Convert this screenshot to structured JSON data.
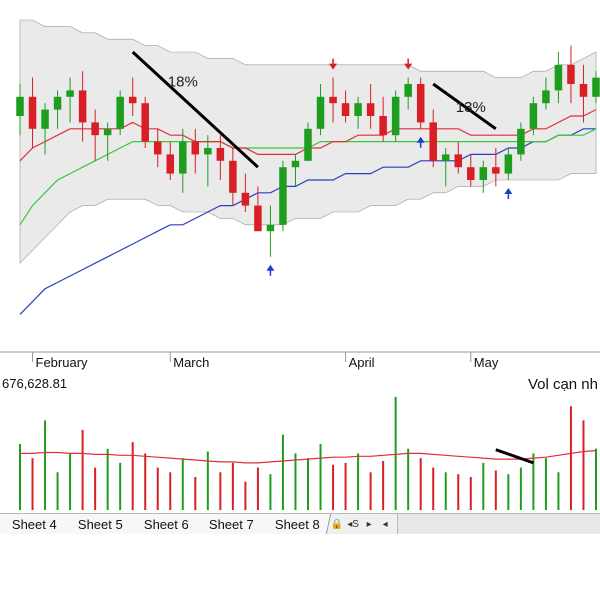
{
  "chart_data": {
    "type": "candlestick",
    "x_labels": [
      "February",
      "March",
      "April",
      "May"
    ],
    "price": {
      "ohlc": [
        [
          135,
          140,
          132,
          138
        ],
        [
          138,
          141,
          130,
          133
        ],
        [
          133,
          137,
          129,
          136
        ],
        [
          136,
          139,
          133,
          138
        ],
        [
          138,
          141,
          134,
          139
        ],
        [
          139,
          142,
          131,
          134
        ],
        [
          134,
          136,
          128,
          132
        ],
        [
          132,
          134,
          128,
          133
        ],
        [
          133,
          139,
          132,
          138
        ],
        [
          138,
          141,
          135,
          137
        ],
        [
          137,
          138,
          130,
          131
        ],
        [
          131,
          133,
          127,
          129
        ],
        [
          129,
          131,
          125,
          126
        ],
        [
          126,
          133,
          123,
          131
        ],
        [
          131,
          133,
          126,
          129
        ],
        [
          129,
          132,
          124,
          130
        ],
        [
          130,
          132,
          125,
          128
        ],
        [
          128,
          130,
          121,
          123
        ],
        [
          123,
          126,
          120,
          121
        ],
        [
          121,
          124,
          117,
          117
        ],
        [
          117,
          121,
          113,
          118
        ],
        [
          118,
          128,
          117,
          127
        ],
        [
          127,
          129,
          124,
          128
        ],
        [
          128,
          134,
          128,
          133
        ],
        [
          133,
          140,
          132,
          138
        ],
        [
          138,
          141,
          134,
          137
        ],
        [
          137,
          139,
          134,
          135
        ],
        [
          135,
          138,
          133,
          137
        ],
        [
          137,
          140,
          133,
          135
        ],
        [
          135,
          138,
          131,
          132
        ],
        [
          132,
          139,
          131,
          138
        ],
        [
          138,
          141,
          136,
          140
        ],
        [
          140,
          141,
          133,
          134
        ],
        [
          134,
          136,
          127,
          128
        ],
        [
          128,
          130,
          124,
          129
        ],
        [
          129,
          131,
          126,
          127
        ],
        [
          127,
          129,
          124,
          125
        ],
        [
          125,
          128,
          123,
          127
        ],
        [
          127,
          130,
          124,
          126
        ],
        [
          126,
          130,
          125,
          129
        ],
        [
          129,
          134,
          128,
          133
        ],
        [
          133,
          138,
          132,
          137
        ],
        [
          137,
          141,
          136,
          139
        ],
        [
          139,
          145,
          137,
          143
        ],
        [
          143,
          146,
          137,
          140
        ],
        [
          140,
          143,
          134,
          138
        ],
        [
          138,
          142,
          137,
          141
        ]
      ],
      "sma_red": [
        128,
        130,
        131,
        132,
        133,
        133,
        133,
        133,
        133,
        134,
        133,
        133,
        132,
        132,
        131,
        131,
        131,
        130,
        130,
        129,
        129,
        129,
        129,
        130,
        130,
        131,
        131,
        132,
        132,
        132,
        133,
        133,
        133,
        133,
        133,
        133,
        132,
        132,
        132,
        132,
        132,
        133,
        133,
        134,
        135,
        135,
        136
      ],
      "sma_green": [
        118,
        121,
        123,
        125,
        126,
        127,
        128,
        129,
        130,
        131,
        131,
        131,
        131,
        131,
        131,
        131,
        131,
        130,
        130,
        130,
        130,
        130,
        130,
        130,
        131,
        131,
        131,
        131,
        131,
        131,
        131,
        131,
        131,
        131,
        131,
        131,
        131,
        131,
        131,
        131,
        131,
        131,
        131,
        132,
        132,
        132,
        133
      ],
      "sma_blue": [
        104,
        106,
        108,
        109,
        110,
        111,
        112,
        113,
        114,
        115,
        116,
        117,
        118,
        118,
        119,
        120,
        121,
        121,
        122,
        123,
        123,
        124,
        124,
        125,
        125,
        125,
        126,
        126,
        126,
        127,
        127,
        127,
        128,
        128,
        128,
        128,
        129,
        129,
        129,
        130,
        130,
        131,
        131,
        132,
        132,
        133,
        133
      ],
      "upper_band": [
        150,
        150,
        149,
        149,
        149,
        148,
        148,
        147,
        147,
        147,
        146,
        146,
        145,
        145,
        145,
        144,
        144,
        144,
        143,
        143,
        143,
        143,
        143,
        143,
        143,
        143,
        143,
        143,
        143,
        143,
        143,
        143,
        142,
        142,
        142,
        142,
        142,
        142,
        141,
        141,
        141,
        142,
        142,
        143,
        143,
        144,
        145
      ],
      "lower_band": [
        112,
        114,
        116,
        118,
        120,
        121,
        121,
        122,
        122,
        122,
        122,
        121,
        121,
        120,
        120,
        120,
        119,
        119,
        118,
        118,
        118,
        118,
        119,
        119,
        119,
        120,
        120,
        120,
        121,
        121,
        121,
        122,
        122,
        123,
        123,
        124,
        124,
        124,
        125,
        125,
        125,
        125,
        125,
        125,
        126,
        126,
        126
      ],
      "annotations": [
        {
          "text": "18%"
        },
        {
          "text": "13%"
        }
      ],
      "ylim": [
        100,
        150
      ]
    },
    "volume": {
      "label": "676,628.81",
      "annotation": "Vol cạn nh",
      "values": [
        70,
        55,
        95,
        40,
        60,
        85,
        45,
        65,
        50,
        72,
        60,
        45,
        40,
        55,
        35,
        62,
        40,
        50,
        30,
        45,
        38,
        80,
        60,
        55,
        70,
        48,
        50,
        60,
        40,
        52,
        120,
        65,
        55,
        45,
        40,
        38,
        35,
        50,
        42,
        38,
        45,
        60,
        55,
        40,
        110,
        95,
        65
      ],
      "ma": [
        60,
        60,
        61,
        61,
        60,
        60,
        59,
        59,
        58,
        58,
        57,
        56,
        55,
        54,
        53,
        52,
        51,
        51,
        50,
        50,
        51,
        52,
        53,
        54,
        55,
        56,
        56,
        57,
        57,
        58,
        59,
        60,
        60,
        59,
        58,
        57,
        56,
        55,
        54,
        54,
        54,
        55,
        56,
        58,
        60,
        62,
        63
      ],
      "ylim": [
        0,
        140
      ]
    }
  },
  "sheets": {
    "tabs": [
      "Sheet 4",
      "Sheet 5",
      "Sheet 6",
      "Sheet 7",
      "Sheet 8"
    ],
    "nav": [
      "🔒",
      "◂S",
      "▸",
      "◂"
    ]
  },
  "colors": {
    "up": "#1f9d1f",
    "down": "#d81f26",
    "band_fill": "#dcdcdc",
    "sma_red": "#e0303a",
    "sma_green": "#38c838",
    "sma_blue": "#2a3fc0",
    "sma_black": "#333333",
    "trendline": "#000000",
    "signal_up": "#1840c8",
    "signal_down": "#d81f26"
  }
}
